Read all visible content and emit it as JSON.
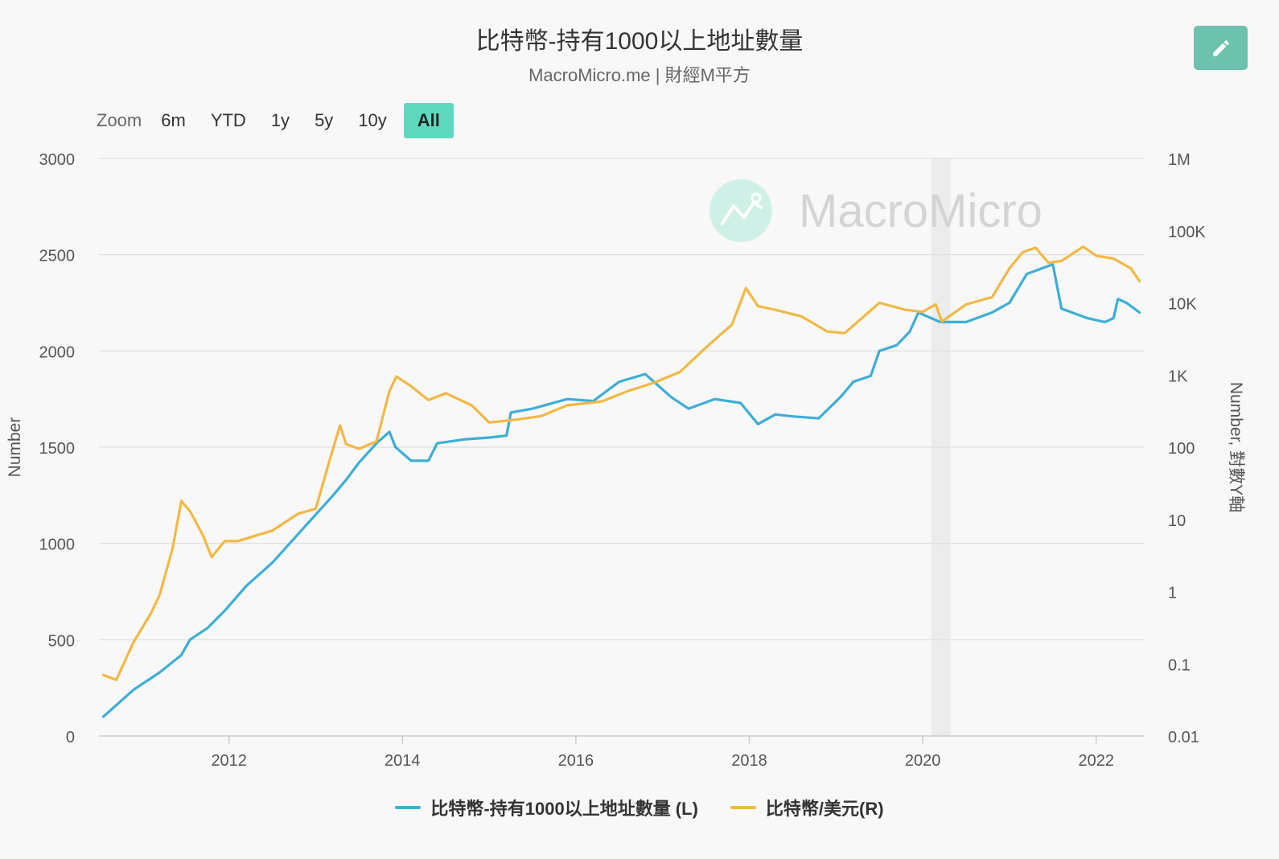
{
  "header": {
    "title": "比特幣-持有1000以上地址數量",
    "subtitle": "MacroMicro.me | 財經M平方"
  },
  "toolbar": {
    "edit_icon": "pencil-icon",
    "zoom_label": "Zoom",
    "zoom_options": [
      "6m",
      "YTD",
      "1y",
      "5y",
      "10y",
      "All"
    ],
    "zoom_selected": "All"
  },
  "watermark": {
    "text": "MacroMicro"
  },
  "colors": {
    "series_left": "#3eaed6",
    "series_right": "#f2b846",
    "accent": "#5fd9be",
    "edit_button": "#6cc2ac",
    "shade": "#ececec"
  },
  "chart_data": {
    "type": "line",
    "title": "比特幣-持有1000以上地址數量",
    "subtitle": "MacroMicro.me | 財經M平方",
    "x_range": [
      2010.5,
      2022.55
    ],
    "x_ticks": [
      "2012",
      "2014",
      "2016",
      "2018",
      "2020",
      "2022"
    ],
    "y_left": {
      "label": "Number",
      "range": [
        0,
        3000
      ],
      "ticks": [
        "0",
        "500",
        "1000",
        "1500",
        "2000",
        "2500",
        "3000"
      ]
    },
    "y_right": {
      "label": "Number, 對數Y軸",
      "scale": "log",
      "range": [
        0.01,
        1000000
      ],
      "ticks": [
        "0.01",
        "0.1",
        "1",
        "10",
        "100",
        "1K",
        "10K",
        "100K",
        "1M"
      ]
    },
    "shaded_region": [
      2020.1,
      2020.32
    ],
    "grid": true,
    "legend_position": "bottom-center",
    "series": [
      {
        "name": "比特幣-持有1000以上地址數量 (L)",
        "axis": "left",
        "color": "#3eaed6",
        "points": [
          [
            2010.55,
            100
          ],
          [
            2010.9,
            240
          ],
          [
            2011.2,
            330
          ],
          [
            2011.45,
            420
          ],
          [
            2011.55,
            500
          ],
          [
            2011.75,
            560
          ],
          [
            2011.95,
            650
          ],
          [
            2012.2,
            780
          ],
          [
            2012.5,
            900
          ],
          [
            2012.8,
            1050
          ],
          [
            2013.0,
            1150
          ],
          [
            2013.2,
            1250
          ],
          [
            2013.35,
            1330
          ],
          [
            2013.5,
            1420
          ],
          [
            2013.7,
            1520
          ],
          [
            2013.85,
            1580
          ],
          [
            2013.92,
            1500
          ],
          [
            2014.1,
            1430
          ],
          [
            2014.3,
            1430
          ],
          [
            2014.4,
            1520
          ],
          [
            2014.7,
            1540
          ],
          [
            2015.0,
            1550
          ],
          [
            2015.2,
            1560
          ],
          [
            2015.25,
            1680
          ],
          [
            2015.5,
            1700
          ],
          [
            2015.9,
            1750
          ],
          [
            2016.2,
            1740
          ],
          [
            2016.5,
            1840
          ],
          [
            2016.8,
            1880
          ],
          [
            2017.1,
            1760
          ],
          [
            2017.3,
            1700
          ],
          [
            2017.6,
            1750
          ],
          [
            2017.9,
            1730
          ],
          [
            2018.1,
            1620
          ],
          [
            2018.3,
            1670
          ],
          [
            2018.5,
            1660
          ],
          [
            2018.8,
            1650
          ],
          [
            2019.05,
            1760
          ],
          [
            2019.2,
            1840
          ],
          [
            2019.4,
            1870
          ],
          [
            2019.5,
            2000
          ],
          [
            2019.7,
            2030
          ],
          [
            2019.85,
            2100
          ],
          [
            2019.95,
            2200
          ],
          [
            2020.2,
            2150
          ],
          [
            2020.5,
            2150
          ],
          [
            2020.8,
            2200
          ],
          [
            2021.0,
            2250
          ],
          [
            2021.2,
            2400
          ],
          [
            2021.5,
            2450
          ],
          [
            2021.6,
            2220
          ],
          [
            2021.9,
            2170
          ],
          [
            2022.1,
            2150
          ],
          [
            2022.2,
            2170
          ],
          [
            2022.25,
            2270
          ],
          [
            2022.35,
            2250
          ],
          [
            2022.5,
            2200
          ]
        ]
      },
      {
        "name": "比特幣/美元(R)",
        "axis": "right",
        "color": "#f2b846",
        "points": [
          [
            2010.55,
            0.07
          ],
          [
            2010.7,
            0.06
          ],
          [
            2010.9,
            0.2
          ],
          [
            2011.1,
            0.5
          ],
          [
            2011.2,
            0.9
          ],
          [
            2011.35,
            4
          ],
          [
            2011.45,
            18
          ],
          [
            2011.55,
            13
          ],
          [
            2011.7,
            6
          ],
          [
            2011.8,
            3
          ],
          [
            2011.95,
            5
          ],
          [
            2012.1,
            5
          ],
          [
            2012.5,
            7
          ],
          [
            2012.8,
            12
          ],
          [
            2013.0,
            14
          ],
          [
            2013.15,
            60
          ],
          [
            2013.28,
            200
          ],
          [
            2013.35,
            110
          ],
          [
            2013.5,
            95
          ],
          [
            2013.7,
            120
          ],
          [
            2013.85,
            600
          ],
          [
            2013.93,
            950
          ],
          [
            2014.1,
            700
          ],
          [
            2014.3,
            450
          ],
          [
            2014.5,
            560
          ],
          [
            2014.8,
            380
          ],
          [
            2015.0,
            220
          ],
          [
            2015.3,
            240
          ],
          [
            2015.6,
            270
          ],
          [
            2015.9,
            380
          ],
          [
            2016.3,
            430
          ],
          [
            2016.6,
            600
          ],
          [
            2016.9,
            780
          ],
          [
            2017.2,
            1100
          ],
          [
            2017.5,
            2400
          ],
          [
            2017.8,
            5000
          ],
          [
            2017.96,
            16000
          ],
          [
            2018.1,
            9000
          ],
          [
            2018.3,
            8000
          ],
          [
            2018.6,
            6500
          ],
          [
            2018.9,
            4000
          ],
          [
            2019.1,
            3800
          ],
          [
            2019.5,
            10000
          ],
          [
            2019.8,
            8000
          ],
          [
            2020.0,
            7500
          ],
          [
            2020.15,
            9500
          ],
          [
            2020.22,
            5500
          ],
          [
            2020.5,
            9500
          ],
          [
            2020.8,
            12000
          ],
          [
            2021.0,
            30000
          ],
          [
            2021.15,
            50000
          ],
          [
            2021.3,
            58000
          ],
          [
            2021.45,
            36000
          ],
          [
            2021.6,
            38000
          ],
          [
            2021.85,
            60000
          ],
          [
            2022.0,
            45000
          ],
          [
            2022.2,
            41000
          ],
          [
            2022.4,
            30000
          ],
          [
            2022.5,
            20000
          ]
        ]
      }
    ]
  }
}
